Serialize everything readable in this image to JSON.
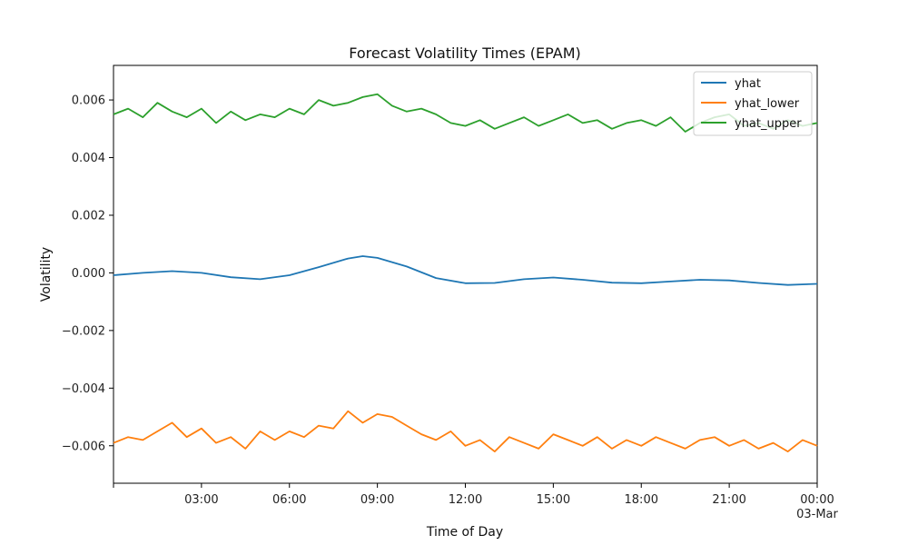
{
  "chart_data": {
    "type": "line",
    "title": "Forecast Volatility Times (EPAM)",
    "xlabel": "Time of Day",
    "ylabel": "Volatility",
    "x_range_hours": [
      0,
      24
    ],
    "x_ticks": [
      {
        "hour": 3,
        "label": "03:00",
        "sublabel": ""
      },
      {
        "hour": 6,
        "label": "06:00",
        "sublabel": ""
      },
      {
        "hour": 9,
        "label": "09:00",
        "sublabel": ""
      },
      {
        "hour": 12,
        "label": "12:00",
        "sublabel": ""
      },
      {
        "hour": 15,
        "label": "15:00",
        "sublabel": ""
      },
      {
        "hour": 18,
        "label": "18:00",
        "sublabel": ""
      },
      {
        "hour": 21,
        "label": "21:00",
        "sublabel": ""
      },
      {
        "hour": 24,
        "label": "00:00",
        "sublabel": "03-Mar"
      }
    ],
    "ylim": [
      -0.0073,
      0.0072
    ],
    "y_ticks": [
      {
        "value": -0.006,
        "label": "−0.006"
      },
      {
        "value": -0.004,
        "label": "−0.004"
      },
      {
        "value": -0.002,
        "label": "−0.002"
      },
      {
        "value": 0.0,
        "label": "0.000"
      },
      {
        "value": 0.002,
        "label": "0.002"
      },
      {
        "value": 0.004,
        "label": "0.004"
      },
      {
        "value": 0.006,
        "label": "0.006"
      }
    ],
    "grid": false,
    "legend_position": "top-right",
    "series": [
      {
        "name": "yhat",
        "color": "#1f77b4",
        "x_hours": [
          0,
          1,
          2,
          3,
          4,
          5,
          6,
          7,
          8,
          8.5,
          9,
          10,
          11,
          12,
          13,
          14,
          15,
          16,
          17,
          18,
          19,
          20,
          21,
          22,
          23,
          24
        ],
        "values": [
          -8e-05,
          0.0,
          6e-05,
          0.0,
          -0.00015,
          -0.00022,
          -8e-05,
          0.0002,
          0.0005,
          0.00058,
          0.00052,
          0.00022,
          -0.00018,
          -0.00036,
          -0.00035,
          -0.00022,
          -0.00016,
          -0.00024,
          -0.00034,
          -0.00036,
          -0.0003,
          -0.00024,
          -0.00026,
          -0.00035,
          -0.00042,
          -0.00038
        ]
      },
      {
        "name": "yhat_lower",
        "color": "#ff7f0e",
        "x_hours": [
          0,
          0.5,
          1,
          1.5,
          2,
          2.5,
          3,
          3.5,
          4,
          4.5,
          5,
          5.5,
          6,
          6.5,
          7,
          7.5,
          8,
          8.5,
          9,
          9.5,
          10,
          10.5,
          11,
          11.5,
          12,
          12.5,
          13,
          13.5,
          14,
          14.5,
          15,
          15.5,
          16,
          16.5,
          17,
          17.5,
          18,
          18.5,
          19,
          19.5,
          20,
          20.5,
          21,
          21.5,
          22,
          22.5,
          23,
          23.5,
          24
        ],
        "values": [
          -0.0059,
          -0.0057,
          -0.0058,
          -0.0055,
          -0.0052,
          -0.0057,
          -0.0054,
          -0.0059,
          -0.0057,
          -0.0061,
          -0.0055,
          -0.0058,
          -0.0055,
          -0.0057,
          -0.0053,
          -0.0054,
          -0.0048,
          -0.0052,
          -0.0049,
          -0.005,
          -0.0053,
          -0.0056,
          -0.0058,
          -0.0055,
          -0.006,
          -0.0058,
          -0.0062,
          -0.0057,
          -0.0059,
          -0.0061,
          -0.0056,
          -0.0058,
          -0.006,
          -0.0057,
          -0.0061,
          -0.0058,
          -0.006,
          -0.0057,
          -0.0059,
          -0.0061,
          -0.0058,
          -0.0057,
          -0.006,
          -0.0058,
          -0.0061,
          -0.0059,
          -0.0062,
          -0.0058,
          -0.006
        ]
      },
      {
        "name": "yhat_upper",
        "color": "#2ca02c",
        "x_hours": [
          0,
          0.5,
          1,
          1.5,
          2,
          2.5,
          3,
          3.5,
          4,
          4.5,
          5,
          5.5,
          6,
          6.5,
          7,
          7.5,
          8,
          8.5,
          9,
          9.5,
          10,
          10.5,
          11,
          11.5,
          12,
          12.5,
          13,
          13.5,
          14,
          14.5,
          15,
          15.5,
          16,
          16.5,
          17,
          17.5,
          18,
          18.5,
          19,
          19.5,
          20,
          20.5,
          21,
          21.5,
          22,
          22.5,
          23,
          23.5,
          24
        ],
        "values": [
          0.0055,
          0.0057,
          0.0054,
          0.0059,
          0.0056,
          0.0054,
          0.0057,
          0.0052,
          0.0056,
          0.0053,
          0.0055,
          0.0054,
          0.0057,
          0.0055,
          0.006,
          0.0058,
          0.0059,
          0.0061,
          0.0062,
          0.0058,
          0.0056,
          0.0057,
          0.0055,
          0.0052,
          0.0051,
          0.0053,
          0.005,
          0.0052,
          0.0054,
          0.0051,
          0.0053,
          0.0055,
          0.0052,
          0.0053,
          0.005,
          0.0052,
          0.0053,
          0.0051,
          0.0054,
          0.0049,
          0.0052,
          0.0054,
          0.0055,
          0.0051,
          0.0052,
          0.005,
          0.0053,
          0.0051,
          0.0052
        ]
      }
    ]
  }
}
